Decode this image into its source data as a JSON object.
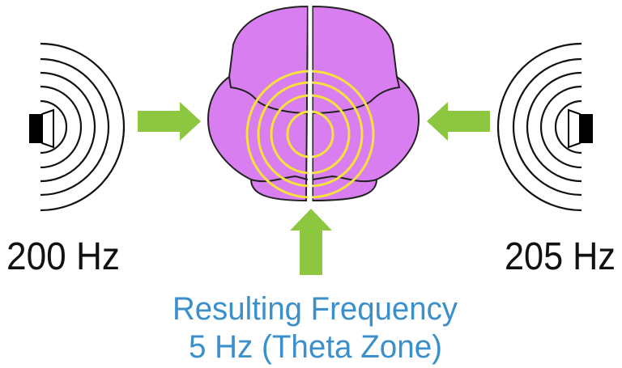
{
  "left_source": {
    "label": "200 Hz",
    "icon": "speaker-icon"
  },
  "right_source": {
    "label": "205 Hz",
    "icon": "speaker-icon"
  },
  "result": {
    "line1": "Resulting Frequency",
    "line2": "5 Hz (Theta Zone)"
  },
  "colors": {
    "brain": "#d97ef0",
    "waves": "#f5e23a",
    "arrows": "#8dc63f",
    "result_text": "#3b8fcb",
    "label_text": "#111111"
  }
}
